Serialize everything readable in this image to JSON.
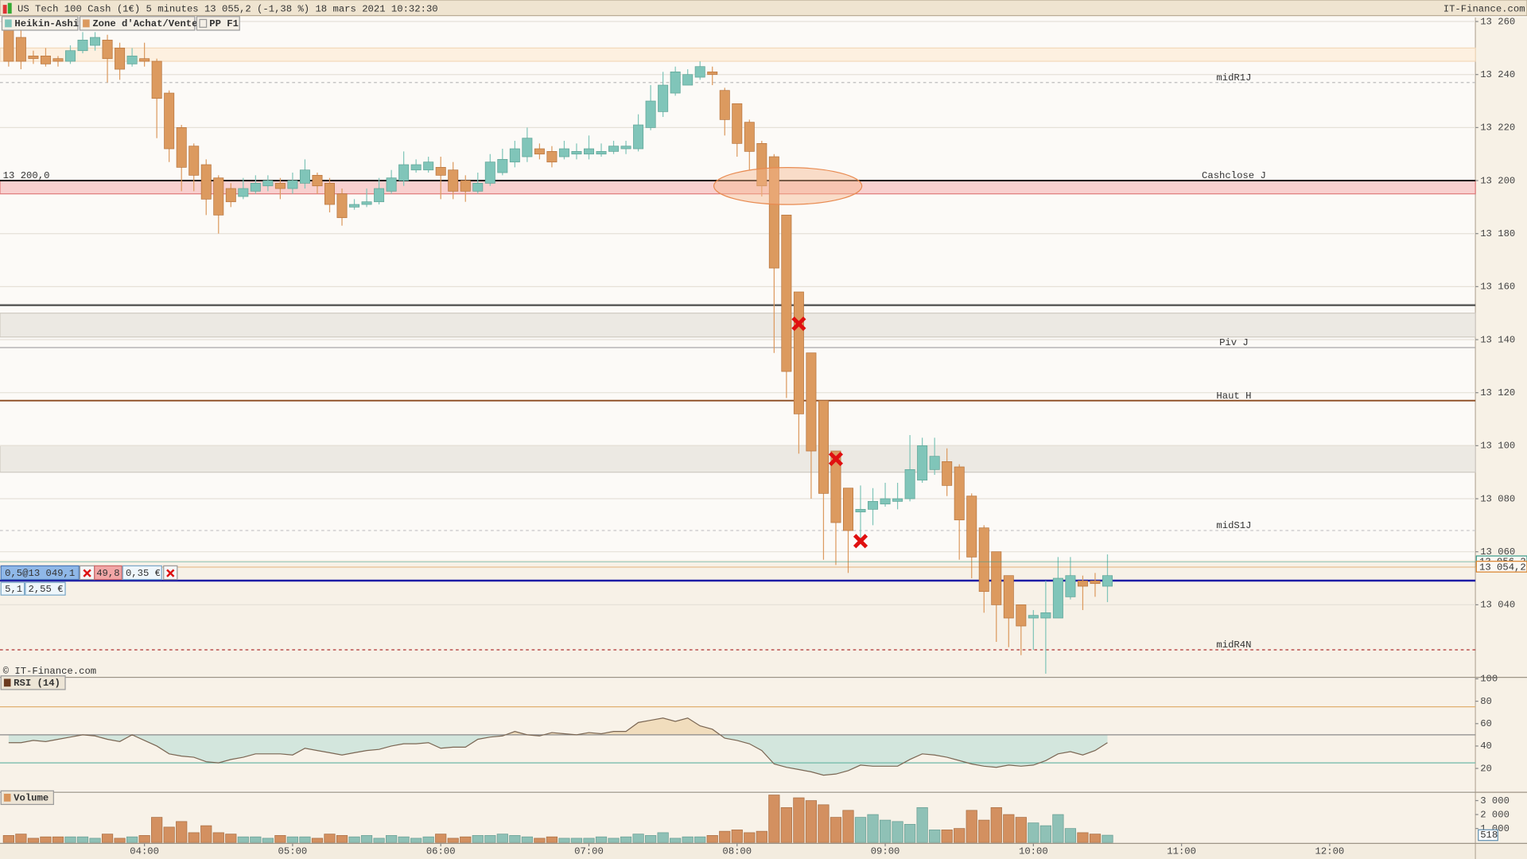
{
  "header": {
    "title": "US Tech 100 Cash (1€) 5 minutes 13 055,2 (-1,38 %) 18 mars 2021 10:32:30",
    "brand": "IT-Finance.com"
  },
  "tabs": [
    "Heikin-Ashi",
    "Zone d'Achat/Vente",
    "PP F1"
  ],
  "copyright": "© IT-Finance.com",
  "order_panel": {
    "row1": [
      "0,5@13 049,1",
      "49,8",
      "0,35 €"
    ],
    "row2": [
      "5,1",
      "2,55 €"
    ]
  },
  "chart_data": [
    {
      "type": "candlestick",
      "x": [
        185,
        190,
        195,
        200,
        205,
        210,
        215,
        220,
        225,
        230,
        235,
        240,
        245,
        250,
        255,
        260,
        265,
        270,
        275,
        280,
        285,
        290,
        295,
        300,
        305,
        310,
        315,
        320,
        325,
        330,
        335,
        340,
        345,
        350,
        355,
        360,
        365,
        370,
        375,
        380,
        385,
        390,
        395,
        400,
        405,
        410,
        415,
        420,
        425,
        430,
        435,
        440,
        445,
        450,
        455,
        460,
        465,
        470,
        475,
        480,
        485,
        490,
        495,
        500,
        505,
        510,
        515,
        520,
        525,
        530,
        535,
        540,
        545,
        550,
        555,
        560,
        565,
        570,
        575,
        580,
        585,
        590,
        595,
        600,
        605,
        610,
        615,
        620,
        625,
        630
      ],
      "open": [
        13258,
        13254,
        13247,
        13247,
        13246,
        13245,
        13249,
        13251,
        13253,
        13250,
        13244,
        13246,
        13245,
        13233,
        13220,
        13213,
        13206,
        13201,
        13197,
        13194,
        13196,
        13198,
        13199,
        13197,
        13199,
        13202,
        13199,
        13195,
        13190,
        13191,
        13192,
        13196,
        13200,
        13204,
        13204,
        13205,
        13204,
        13200,
        13196,
        13199,
        13203,
        13207,
        13209,
        13212,
        13211,
        13209,
        13210,
        13210,
        13210,
        13211,
        13212,
        13212,
        13220,
        13226,
        13233,
        13236,
        13239,
        13241,
        13234,
        13229,
        13222,
        13214,
        13209,
        13187,
        13158,
        13135,
        13117,
        13098,
        13084,
        13075,
        13076,
        13078,
        13079,
        13080,
        13087,
        13091,
        13094,
        13092,
        13081,
        13069,
        13060,
        13051,
        13040,
        13035,
        13035,
        13035,
        13043,
        13049,
        13049,
        13047
      ],
      "high": [
        13262,
        13257,
        13249,
        13250,
        13247,
        13251,
        13256,
        13256,
        13255,
        13252,
        13250,
        13252,
        13246,
        13234,
        13221,
        13214,
        13208,
        13202,
        13199,
        13201,
        13202,
        13202,
        13201,
        13203,
        13208,
        13203,
        13201,
        13197,
        13193,
        13197,
        13201,
        13204,
        13211,
        13208,
        13209,
        13209,
        13207,
        13202,
        13203,
        13210,
        13212,
        13215,
        13220,
        13214,
        13213,
        13215,
        13214,
        13217,
        13214,
        13215,
        13215,
        13225,
        13236,
        13241,
        13243,
        13242,
        13245,
        13243,
        13235,
        13229,
        13223,
        13215,
        13210,
        13187,
        13158,
        13135,
        13117,
        13098,
        13084,
        13085,
        13084,
        13086,
        13086,
        13104,
        13103,
        13103,
        13099,
        13093,
        13082,
        13070,
        13060,
        13051,
        13040,
        13038,
        13049,
        13058,
        13058,
        13051,
        13052,
        13059
      ],
      "low": [
        13243,
        13242,
        13244,
        13243,
        13243,
        13244,
        13248,
        13249,
        13237,
        13238,
        13243,
        13243,
        13216,
        13207,
        13196,
        13196,
        13187,
        13180,
        13190,
        13193,
        13195,
        13196,
        13193,
        13195,
        13197,
        13195,
        13188,
        13183,
        13189,
        13190,
        13191,
        13195,
        13198,
        13203,
        13203,
        13193,
        13193,
        13192,
        13195,
        13198,
        13202,
        13205,
        13207,
        13208,
        13205,
        13208,
        13208,
        13208,
        13209,
        13210,
        13210,
        13211,
        13219,
        13224,
        13232,
        13236,
        13238,
        13236,
        13217,
        13209,
        13204,
        13194,
        13135,
        13118,
        13097,
        13080,
        13057,
        13055,
        13052,
        13064,
        13070,
        13077,
        13076,
        13079,
        13086,
        13089,
        13081,
        13057,
        13050,
        13037,
        13026,
        13024,
        13021,
        13023,
        13014,
        13035,
        13042,
        13038,
        13043,
        13041
      ],
      "close": [
        13245,
        13245,
        13246,
        13244,
        13245,
        13249,
        13253,
        13254,
        13246,
        13242,
        13247,
        13245,
        13231,
        13212,
        13205,
        13202,
        13193,
        13187,
        13192,
        13197,
        13199,
        13200,
        13197,
        13200,
        13204,
        13198,
        13191,
        13186,
        13191,
        13192,
        13197,
        13201,
        13206,
        13206,
        13207,
        13202,
        13196,
        13196,
        13199,
        13207,
        13208,
        13212,
        13216,
        13210,
        13207,
        13212,
        13211,
        13212,
        13211,
        13213,
        13213,
        13221,
        13230,
        13236,
        13241,
        13240,
        13243,
        13240,
        13223,
        13214,
        13211,
        13198,
        13167,
        13128,
        13112,
        13098,
        13082,
        13071,
        13068,
        13076,
        13079,
        13080,
        13080,
        13091,
        13100,
        13096,
        13085,
        13072,
        13058,
        13045,
        13040,
        13035,
        13032,
        13036,
        13037,
        13050,
        13051,
        13047,
        13048,
        13051
      ],
      "up_color": "#80c5b9",
      "down_color": "#dc9a5f",
      "xlim": [
        181.5,
        779
      ],
      "xticks": [
        {
          "value": 240,
          "label": "04:00"
        },
        {
          "value": 300,
          "label": "05:00"
        },
        {
          "value": 360,
          "label": "06:00"
        },
        {
          "value": 420,
          "label": "07:00"
        },
        {
          "value": 480,
          "label": "08:00"
        },
        {
          "value": 540,
          "label": "09:00"
        },
        {
          "value": 600,
          "label": "10:00"
        },
        {
          "value": 660,
          "label": "11:00"
        },
        {
          "value": 720,
          "label": "12:00"
        }
      ],
      "ylim": [
        13012.8,
        13261.5
      ],
      "yticks": [
        {
          "value": 13040,
          "label": "13 040"
        },
        {
          "value": 13060,
          "label": "13 060"
        },
        {
          "value": 13080,
          "label": "13 080"
        },
        {
          "value": 13100,
          "label": "13 100"
        },
        {
          "value": 13120,
          "label": "13 120"
        },
        {
          "value": 13140,
          "label": "13 140"
        },
        {
          "value": 13160,
          "label": "13 160"
        },
        {
          "value": 13180,
          "label": "13 180"
        },
        {
          "value": 13200,
          "label": "13 200"
        },
        {
          "value": 13220,
          "label": "13 220"
        },
        {
          "value": 13240,
          "label": "13 240"
        },
        {
          "value": 13260,
          "label": "13 260"
        }
      ],
      "grid": true,
      "zones": [
        {
          "from": 13245,
          "to": 13250,
          "color": "#fdf0e0",
          "border": "#f3d9bb"
        },
        {
          "from": 13195,
          "to": 13200,
          "color": "#f8d0cf",
          "border": "#e07a7a"
        },
        {
          "from": 13141,
          "to": 13150,
          "color": "#ece9e3",
          "border": "#cfcac2"
        },
        {
          "from": 13090,
          "to": 13100,
          "color": "#ece9e3",
          "border": "#cfcac2"
        }
      ],
      "levels": [
        {
          "value": 13237,
          "label": "midR1J",
          "color": "#bdbdbd",
          "label_color": "#d9955a",
          "style": "dashed",
          "width": 1
        },
        {
          "value": 13200,
          "label": "Cashclose J",
          "value_label": "13 200,0",
          "color": "#000000",
          "style": "solid",
          "width": 1.5
        },
        {
          "value": 13153,
          "color": "#555555",
          "style": "solid",
          "width": 2
        },
        {
          "value": 13137,
          "label": "Piv J",
          "color": "#a8a8a8",
          "style": "solid",
          "width": 1
        },
        {
          "value": 13117,
          "label": "Haut H",
          "color": "#8b4a1f",
          "style": "solid",
          "width": 1.5
        },
        {
          "value": 13068,
          "label": "midS1J",
          "color": "#c8c8c8",
          "label_color": "#4aa89a",
          "style": "dashed",
          "width": 1
        },
        {
          "value": 13049.1,
          "color": "#1c1ca6",
          "style": "solid",
          "width": 2
        },
        {
          "value": 13023,
          "label": "midR4N",
          "color": "#b03030",
          "style": "dashed",
          "width": 1
        }
      ],
      "price_tags": [
        {
          "value": 13056.2,
          "value_label": "13 056,2",
          "color": "#3a9c8c"
        },
        {
          "value": 13054.2,
          "value_label": "13 054,2",
          "color": "#d9822b"
        }
      ],
      "markers": {
        "x": [
          505,
          520,
          530
        ],
        "y": [
          13146,
          13095,
          13064
        ],
        "color": "#e01010"
      }
    },
    {
      "type": "line",
      "title": "RSI (14)",
      "color": "#7a6653",
      "title_color": "#6b3a1f",
      "x": [
        185,
        190,
        195,
        200,
        205,
        210,
        215,
        220,
        225,
        230,
        235,
        240,
        245,
        250,
        255,
        260,
        265,
        270,
        275,
        280,
        285,
        290,
        295,
        300,
        305,
        310,
        315,
        320,
        325,
        330,
        335,
        340,
        345,
        350,
        355,
        360,
        365,
        370,
        375,
        380,
        385,
        390,
        395,
        400,
        405,
        410,
        415,
        420,
        425,
        430,
        435,
        440,
        445,
        450,
        455,
        460,
        465,
        470,
        475,
        480,
        485,
        490,
        495,
        500,
        505,
        510,
        515,
        520,
        525,
        530,
        535,
        540,
        545,
        550,
        555,
        560,
        565,
        570,
        575,
        580,
        585,
        590,
        595,
        600,
        605,
        610,
        615,
        620,
        625,
        630
      ],
      "values": [
        43,
        43,
        45,
        44,
        46,
        48,
        50,
        49,
        46,
        44,
        50,
        45,
        40,
        33,
        31,
        30,
        26,
        25,
        28,
        30,
        33,
        33,
        33,
        32,
        38,
        36,
        34,
        32,
        34,
        36,
        37,
        40,
        42,
        42,
        43,
        38,
        39,
        39,
        46,
        48,
        49,
        53,
        50,
        49,
        52,
        51,
        50,
        52,
        51,
        53,
        53,
        61,
        63,
        65,
        62,
        65,
        58,
        55,
        47,
        45,
        42,
        36,
        24,
        21,
        19,
        17,
        14,
        15,
        18,
        23,
        22,
        22,
        22,
        28,
        33,
        32,
        30,
        27,
        24,
        22,
        21,
        23,
        22,
        23,
        27,
        33,
        35,
        32,
        36,
        43
      ],
      "xlim": [
        181.5,
        779
      ],
      "ylim": [
        0,
        100
      ],
      "yticks": [
        20,
        40,
        60,
        80,
        100
      ],
      "levels": [
        {
          "value": 75,
          "color": "#e0b070"
        },
        {
          "value": 50,
          "color": "#8a8a8a"
        },
        {
          "value": 25,
          "color": "#6fb8a8"
        }
      ],
      "fill_above": "#f1ddbd",
      "fill_below": "#d3e6dd"
    },
    {
      "type": "bar",
      "title": "Volume",
      "title_color": "#d9955a",
      "x": [
        185,
        190,
        195,
        200,
        205,
        210,
        215,
        220,
        225,
        230,
        235,
        240,
        245,
        250,
        255,
        260,
        265,
        270,
        275,
        280,
        285,
        290,
        295,
        300,
        305,
        310,
        315,
        320,
        325,
        330,
        335,
        340,
        345,
        350,
        355,
        360,
        365,
        370,
        375,
        380,
        385,
        390,
        395,
        400,
        405,
        410,
        415,
        420,
        425,
        430,
        435,
        440,
        445,
        450,
        455,
        460,
        465,
        470,
        475,
        480,
        485,
        490,
        495,
        500,
        505,
        510,
        515,
        520,
        525,
        530,
        535,
        540,
        545,
        550,
        555,
        560,
        565,
        570,
        575,
        580,
        585,
        590,
        595,
        600,
        605,
        610,
        615,
        620,
        625,
        630
      ],
      "values": [
        500,
        600,
        300,
        400,
        400,
        400,
        400,
        300,
        600,
        300,
        400,
        500,
        1800,
        1100,
        1500,
        700,
        1200,
        700,
        600,
        400,
        400,
        300,
        500,
        400,
        400,
        300,
        600,
        500,
        400,
        500,
        300,
        500,
        400,
        300,
        400,
        600,
        300,
        400,
        500,
        500,
        600,
        500,
        400,
        300,
        400,
        300,
        300,
        300,
        400,
        300,
        400,
        600,
        500,
        700,
        300,
        400,
        400,
        500,
        800,
        900,
        700,
        800,
        3400,
        2500,
        3200,
        3000,
        2700,
        1800,
        2300,
        1800,
        2000,
        1600,
        1500,
        1300,
        2500,
        900,
        900,
        1000,
        2300,
        1600,
        2500,
        2000,
        1800,
        1400,
        1200,
        2000,
        1000,
        700,
        600,
        518
      ],
      "up_color": "#8fc1b6",
      "down_color": "#d39060",
      "current": 518,
      "xlim": [
        181.5,
        779
      ],
      "ylim": [
        0,
        3490
      ],
      "yticks": [
        {
          "value": 1000,
          "label": "1 000"
        },
        {
          "value": 2000,
          "label": "2 000"
        },
        {
          "value": 3000,
          "label": "3 000"
        }
      ]
    }
  ]
}
